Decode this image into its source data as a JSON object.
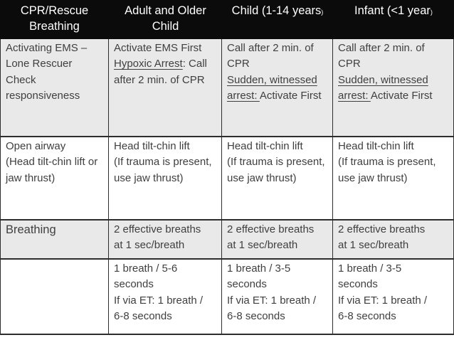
{
  "colors": {
    "header_bg": "#0b0b0b",
    "header_text": "#ffffff",
    "body_text": "#3f3f3f",
    "shaded_row_bg": "#e9e9e9",
    "plain_row_bg": "#ffffff",
    "border": "#2d2d2d"
  },
  "table": {
    "header": [
      {
        "lines": [
          [
            {
              "t": "CPR/Rescue"
            }
          ],
          [
            {
              "t": "Breathing"
            }
          ]
        ]
      },
      {
        "lines": [
          [
            {
              "t": "Adult and Older"
            }
          ],
          [
            {
              "t": "Child"
            }
          ]
        ]
      },
      {
        "lines": [
          [
            {
              "t": "Child (1-14 years"
            },
            {
              "t": ")",
              "small": true
            }
          ]
        ]
      },
      {
        "lines": [
          [
            {
              "t": "Infant (<1 year"
            },
            {
              "t": ")",
              "small": true
            }
          ]
        ]
      }
    ],
    "rows": [
      {
        "shaded": true,
        "cells": [
          {
            "lines": [
              [
                {
                  "t": "Activating EMS –"
                }
              ],
              [
                {
                  "t": "Lone Rescuer"
                }
              ],
              [
                {
                  "t": "Check"
                }
              ],
              [
                {
                  "t": "responsiveness"
                }
              ]
            ]
          },
          {
            "lines": [
              [
                {
                  "t": "Activate EMS First"
                }
              ],
              [
                {
                  "t": "Hypoxic Arrest",
                  "underline": true
                },
                {
                  "t": ": Call"
                }
              ],
              [
                {
                  "t": "after 2 min. of CPR"
                }
              ]
            ]
          },
          {
            "lines": [
              [
                {
                  "t": "Call after 2 min. of"
                }
              ],
              [
                {
                  "t": "CPR"
                }
              ],
              [
                {
                  "t": "Sudden, witnessed",
                  "underline": true
                }
              ],
              [
                {
                  "t": "arrest: ",
                  "underline": true
                },
                {
                  "t": "Activate First"
                }
              ]
            ]
          },
          {
            "lines": [
              [
                {
                  "t": "Call after 2 min. of"
                }
              ],
              [
                {
                  "t": "CPR"
                }
              ],
              [
                {
                  "t": "Sudden, witnessed",
                  "underline": true
                }
              ],
              [
                {
                  "t": "arrest: ",
                  "underline": true
                },
                {
                  "t": "Activate First"
                }
              ]
            ]
          }
        ]
      },
      {
        "shaded": false,
        "cells": [
          {
            "lines": [
              [
                {
                  "t": "Open airway"
                }
              ],
              [
                {
                  "t": "(Head tilt-chin lift or"
                }
              ],
              [
                {
                  "t": "jaw thrust)"
                }
              ]
            ]
          },
          {
            "lines": [
              [
                {
                  "t": "Head tilt-chin lift"
                }
              ],
              [
                {
                  "t": "(If trauma is present,"
                }
              ],
              [
                {
                  "t": "use jaw thrust)"
                }
              ]
            ]
          },
          {
            "lines": [
              [
                {
                  "t": "Head tilt-chin lift"
                }
              ],
              [
                {
                  "t": "(If trauma is present,"
                }
              ],
              [
                {
                  "t": "use jaw thrust)"
                }
              ]
            ]
          },
          {
            "lines": [
              [
                {
                  "t": "Head tilt-chin lift"
                }
              ],
              [
                {
                  "t": "(If trauma is present,"
                }
              ],
              [
                {
                  "t": "use jaw thrust)"
                }
              ]
            ]
          }
        ]
      },
      {
        "shaded": true,
        "cells": [
          {
            "label": true,
            "lines": [
              [
                {
                  "t": "Breathing"
                }
              ]
            ]
          },
          {
            "lines": [
              [
                {
                  "t": "2 effective breaths"
                }
              ],
              [
                {
                  "t": "at 1 sec/breath"
                }
              ]
            ]
          },
          {
            "lines": [
              [
                {
                  "t": "2 effective breaths"
                }
              ],
              [
                {
                  "t": "at 1 sec/breath"
                }
              ]
            ]
          },
          {
            "lines": [
              [
                {
                  "t": "2 effective breaths"
                }
              ],
              [
                {
                  "t": "at 1 sec/breath"
                }
              ]
            ]
          }
        ]
      },
      {
        "shaded": false,
        "cells": [
          {
            "lines": []
          },
          {
            "lines": [
              [
                {
                  "t": "1 breath / 5-6"
                }
              ],
              [
                {
                  "t": "seconds"
                }
              ],
              [
                {
                  "t": "If via ET: 1 breath /"
                }
              ],
              [
                {
                  "t": "6-8 seconds"
                }
              ]
            ]
          },
          {
            "lines": [
              [
                {
                  "t": "1 breath / 3-5"
                }
              ],
              [
                {
                  "t": "seconds"
                }
              ],
              [
                {
                  "t": "If via ET: 1 breath /"
                }
              ],
              [
                {
                  "t": "6-8 seconds"
                }
              ]
            ]
          },
          {
            "lines": [
              [
                {
                  "t": "1 breath / 3-5"
                }
              ],
              [
                {
                  "t": "seconds"
                }
              ],
              [
                {
                  "t": "If via ET: 1 breath /"
                }
              ],
              [
                {
                  "t": "6-8 seconds"
                }
              ]
            ]
          }
        ]
      }
    ]
  }
}
